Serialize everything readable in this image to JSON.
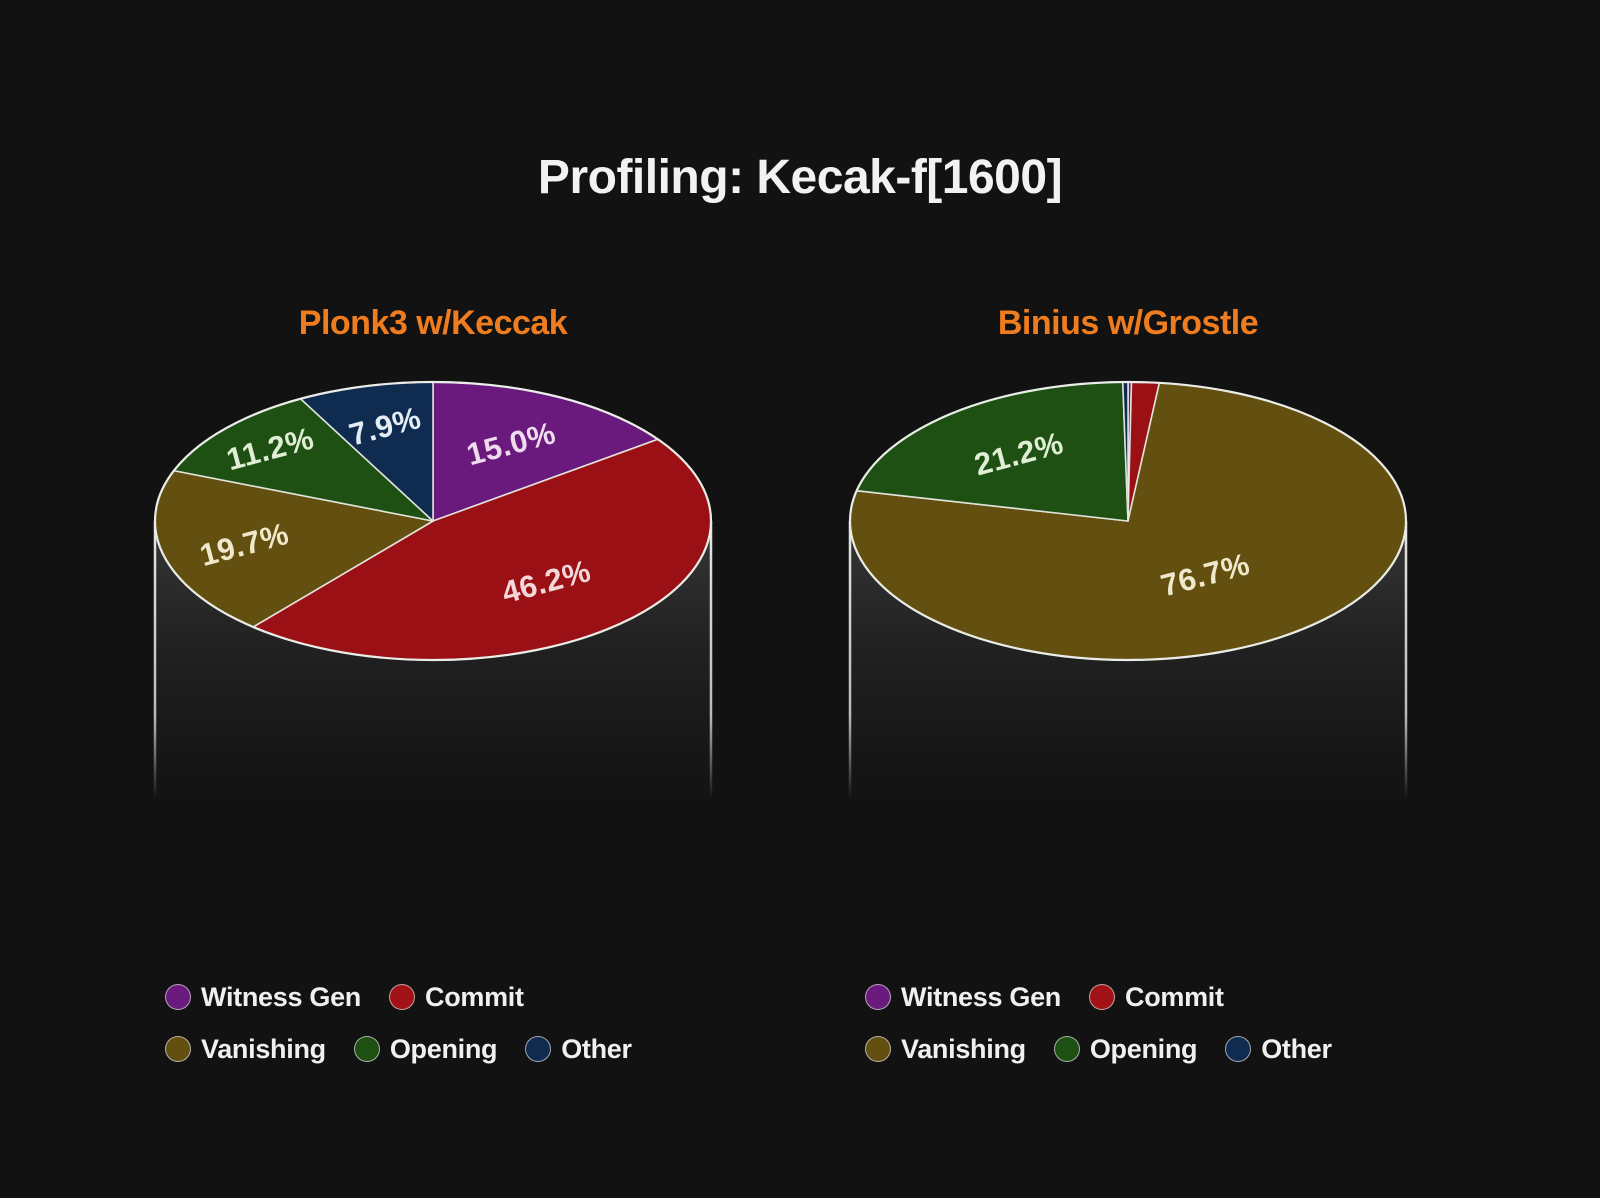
{
  "page": {
    "title": "Profiling: Kecak-f[1600]",
    "background_color": "#121212",
    "title_color": "#f2f2f2",
    "accent_color": "#ef7d1f"
  },
  "legend": {
    "rows": [
      [
        {
          "label": "Witness Gen",
          "color": "#6a1a7d"
        },
        {
          "label": "Commit",
          "color": "#a11217"
        }
      ],
      [
        {
          "label": "Vanishing",
          "color": "#635010"
        },
        {
          "label": "Opening",
          "color": "#1e5013"
        },
        {
          "label": "Other",
          "color": "#0f2b50"
        }
      ]
    ]
  },
  "chart_data": [
    {
      "type": "pie",
      "title": "Plonk3 w/Keccak",
      "title_color": "#ef7d1f",
      "categories": [
        "Witness Gen",
        "Commit",
        "Vanishing",
        "Opening",
        "Other"
      ],
      "values": [
        15.0,
        46.2,
        19.7,
        11.2,
        7.9
      ],
      "slice_labels": [
        "15.0%",
        "46.2%",
        "19.7%",
        "11.2%",
        "7.9%"
      ],
      "colors": [
        "#6a1a7d",
        "#9a1015",
        "#635010",
        "#1e5013",
        "#0f2b50"
      ],
      "label_colors": [
        "#eedcee",
        "#f2d8d8",
        "#efe8cb",
        "#e0eed6",
        "#e4ecf6"
      ],
      "label_distance": [
        0.62,
        0.6,
        0.7,
        0.78,
        0.7
      ],
      "start_angle": 90,
      "direction": "clockwise",
      "legend_position": "bottom",
      "style": "3d-ellipse-on-cylinder"
    },
    {
      "type": "pie",
      "title": "Binius w/Grostle",
      "title_color": "#ef7d1f",
      "categories": [
        "Witness Gen",
        "Commit",
        "Vanishing",
        "Opening",
        "Other"
      ],
      "values": [
        0.2,
        1.6,
        76.7,
        21.2,
        0.3
      ],
      "slice_labels": [
        "",
        "",
        "76.7%",
        "21.2%",
        ""
      ],
      "colors": [
        "#6a1a7d",
        "#9a1015",
        "#635010",
        "#1e5013",
        "#0f2b50"
      ],
      "label_colors": [
        "",
        "",
        "#efe8cb",
        "#e0eed6",
        ""
      ],
      "label_distance": [
        0,
        0,
        0.48,
        0.62,
        0
      ],
      "start_angle": 90,
      "direction": "clockwise",
      "legend_position": "bottom",
      "style": "3d-ellipse-on-cylinder"
    }
  ]
}
